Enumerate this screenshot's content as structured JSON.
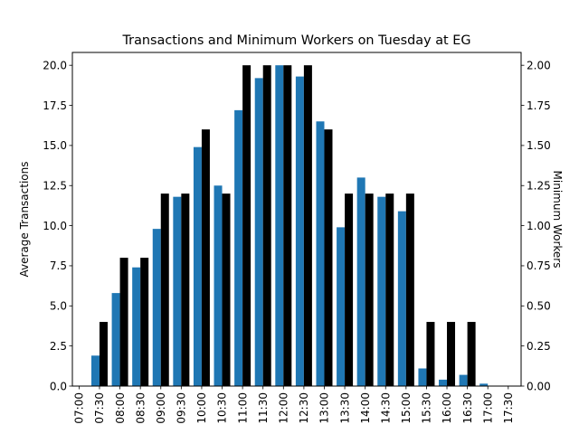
{
  "chart_data": {
    "type": "bar",
    "title": "Transactions and Minimum Workers on Tuesday at EG",
    "ylabel": "Average Transactions",
    "y2label": "Minimum Workers",
    "ylim": [
      0,
      20.8
    ],
    "y2lim": [
      0,
      2.08
    ],
    "yticks": [
      "0.0",
      "2.5",
      "5.0",
      "7.5",
      "10.0",
      "12.5",
      "15.0",
      "17.5",
      "20.0"
    ],
    "y2ticks": [
      "0.00",
      "0.25",
      "0.50",
      "0.75",
      "1.00",
      "1.25",
      "1.50",
      "1.75",
      "2.00"
    ],
    "categories": [
      "07:00",
      "07:30",
      "08:00",
      "08:30",
      "09:00",
      "09:30",
      "10:00",
      "10:30",
      "11:00",
      "11:30",
      "12:00",
      "12:30",
      "13:00",
      "13:30",
      "14:00",
      "14:30",
      "15:00",
      "15:30",
      "16:00",
      "16:30",
      "17:00",
      "17:30"
    ],
    "series": [
      {
        "name": "Average Transactions",
        "axis": "left",
        "color": "#1f77b4",
        "values": [
          0,
          1.9,
          5.8,
          7.4,
          9.8,
          11.8,
          14.9,
          12.5,
          17.2,
          19.2,
          20.0,
          19.3,
          16.5,
          9.9,
          13.0,
          11.8,
          10.9,
          1.1,
          0.4,
          0.7,
          0.15,
          0
        ]
      },
      {
        "name": "Minimum Workers",
        "axis": "right",
        "color": "#000000",
        "values": [
          0,
          0.4,
          0.8,
          0.8,
          1.2,
          1.2,
          1.6,
          1.2,
          2.0,
          2.0,
          2.0,
          2.0,
          1.6,
          1.2,
          1.2,
          1.2,
          1.2,
          0.4,
          0.4,
          0.4,
          0,
          0
        ]
      }
    ]
  }
}
